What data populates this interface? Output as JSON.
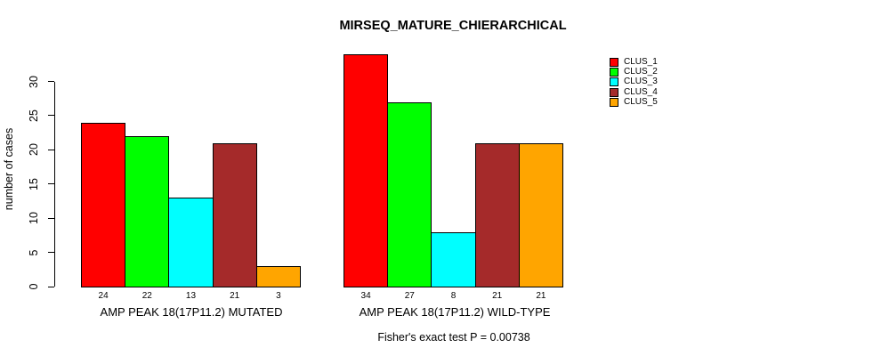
{
  "title": "MIRSEQ_MATURE_CHIERARCHICAL",
  "chart_data": {
    "type": "bar",
    "title": "MIRSEQ_MATURE_CHIERARCHICAL",
    "ylabel": "number of cases",
    "xlabel": "",
    "ylim": [
      0,
      30
    ],
    "yticks": [
      0,
      5,
      10,
      15,
      20,
      25,
      30
    ],
    "grid": false,
    "legend_position": "right",
    "categories": [
      "AMP PEAK 18(17P11.2) MUTATED",
      "AMP PEAK 18(17P11.2) WILD-TYPE"
    ],
    "series": [
      {
        "name": "CLUS_1",
        "color": "#FF0000",
        "values": [
          24,
          34
        ]
      },
      {
        "name": "CLUS_2",
        "color": "#00FF00",
        "values": [
          22,
          27
        ]
      },
      {
        "name": "CLUS_3",
        "color": "#00FFFF",
        "values": [
          13,
          8
        ]
      },
      {
        "name": "CLUS_4",
        "color": "#A52A2A",
        "values": [
          21,
          21
        ]
      },
      {
        "name": "CLUS_5",
        "color": "#FFA500",
        "values": [
          3,
          21
        ]
      }
    ],
    "bar_value_labels_shown": true,
    "annotation": "Fisher's exact test P = 0.00738"
  }
}
